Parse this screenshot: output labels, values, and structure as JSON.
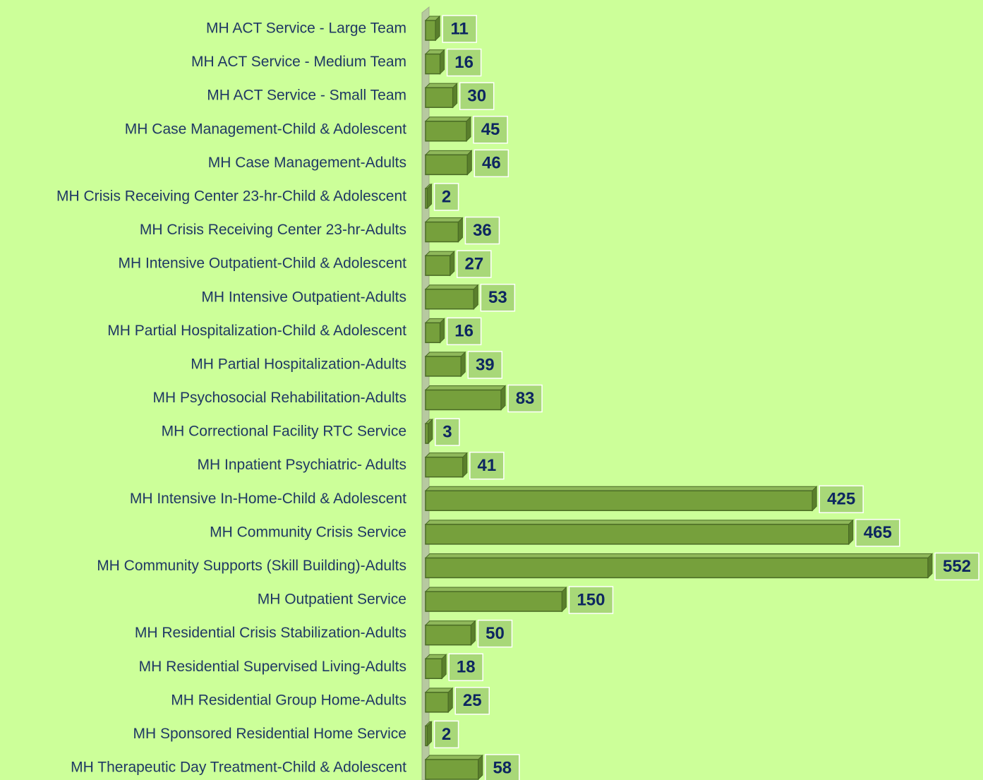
{
  "chart_data": {
    "type": "bar",
    "orientation": "horizontal",
    "categories": [
      "MH ACT Service - Large Team",
      "MH ACT Service - Medium Team",
      "MH ACT Service - Small Team",
      "MH Case Management-Child & Adolescent",
      "MH Case Management-Adults",
      "MH Crisis Receiving Center 23-hr-Child & Adolescent",
      "MH Crisis Receiving Center 23-hr-Adults",
      "MH Intensive Outpatient-Child & Adolescent",
      "MH Intensive Outpatient-Adults",
      "MH Partial Hospitalization-Child & Adolescent",
      "MH Partial Hospitalization-Adults",
      "MH Psychosocial Rehabilitation-Adults",
      "MH Correctional Facility RTC Service",
      "MH Inpatient Psychiatric- Adults",
      "MH Intensive In-Home-Child & Adolescent",
      "MH Community Crisis Service",
      "MH Community Supports (Skill Building)-Adults",
      "MH Outpatient Service",
      "MH Residential Crisis Stabilization-Adults",
      "MH Residential Supervised Living-Adults",
      "MH Residential Group Home-Adults",
      "MH Sponsored Residential Home Service",
      "MH Therapeutic Day Treatment-Child & Adolescent"
    ],
    "values": [
      11,
      16,
      30,
      45,
      46,
      2,
      36,
      27,
      53,
      16,
      39,
      83,
      3,
      41,
      425,
      465,
      552,
      150,
      50,
      18,
      25,
      2,
      58
    ],
    "color": "#76a03c",
    "background": "#ccff99",
    "label_color": "#1f3864",
    "value_label_color": "#0d2660"
  }
}
